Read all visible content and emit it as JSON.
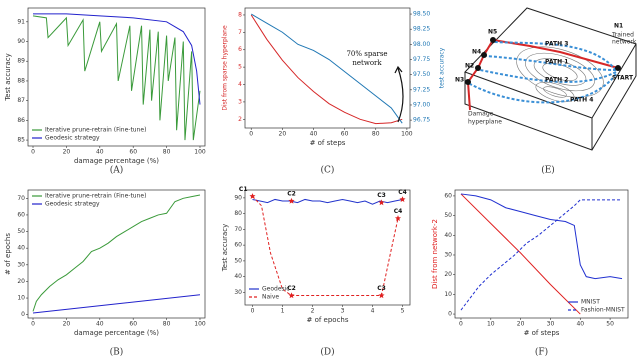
{
  "chart_data": [
    {
      "type": "line",
      "caption": "(A)",
      "xlabel": "damage percentage (%)",
      "ylabel": "Test accuracy",
      "xlim": [
        -3,
        103
      ],
      "xticks": [
        0,
        20,
        40,
        60,
        80,
        100
      ],
      "ylim": [
        84.7,
        91.7
      ],
      "yticks": [
        85,
        86,
        87,
        88,
        89,
        90,
        91
      ],
      "legend": "lower left",
      "series": [
        {
          "name": "Iterative prune-retrain (Fine-tune)",
          "color": "#3a9a3a",
          "x": [
            0,
            8,
            9,
            20,
            21,
            30,
            31,
            40,
            41,
            50,
            51,
            58,
            59,
            65,
            66,
            70,
            71,
            75,
            76,
            80,
            81,
            85,
            86,
            90,
            91,
            95,
            96,
            100
          ],
          "values": [
            91.3,
            91.2,
            90.2,
            91.2,
            89.8,
            91.1,
            88.5,
            91.0,
            89.5,
            90.9,
            88.0,
            90.8,
            87.5,
            90.8,
            86.8,
            90.6,
            87.0,
            90.5,
            86.0,
            90.3,
            88.0,
            90.2,
            85.5,
            90.0,
            85.0,
            89.5,
            85.0,
            87.5
          ]
        },
        {
          "name": "Geodesic strategy",
          "color": "#2222cc",
          "x": [
            0,
            20,
            40,
            60,
            80,
            90,
            95,
            98,
            100
          ],
          "values": [
            91.4,
            91.4,
            91.3,
            91.2,
            91.0,
            90.5,
            89.8,
            88.5,
            86.8
          ]
        }
      ]
    },
    {
      "type": "line",
      "caption": "(C)",
      "xlabel": "# of steps",
      "ylabel": "Dist from sparse hyperplane",
      "y2label": "test accuracy",
      "xlim": [
        -4,
        102
      ],
      "xticks": [
        0,
        20,
        40,
        60,
        80,
        100
      ],
      "ylim": [
        1.5,
        8.4
      ],
      "yticks": [
        2,
        3,
        4,
        5,
        6,
        7,
        8
      ],
      "y2lim": [
        96.62,
        98.6
      ],
      "y2ticks": [
        {
          "value": 96.75,
          "label": "96.75"
        },
        {
          "value": 97,
          "label": "97.00"
        },
        {
          "value": 97.25,
          "label": "97.25"
        },
        {
          "value": 97.5,
          "label": "97.50"
        },
        {
          "value": 97.75,
          "label": "97.75"
        },
        {
          "value": 98,
          "label": "98.00"
        },
        {
          "value": 98.25,
          "label": "98.25"
        },
        {
          "value": 98.5,
          "label": "98.50"
        }
      ],
      "x": [
        0,
        10,
        20,
        30,
        40,
        50,
        60,
        70,
        80,
        90,
        97
      ],
      "annotation": [
        "70% sparse",
        "network"
      ],
      "series": [
        {
          "color": "#d62728",
          "values": [
            8,
            6.6,
            5.4,
            4.4,
            3.6,
            2.9,
            2.4,
            2.0,
            1.75,
            1.8,
            2.0
          ]
        },
        {
          "color": "#1f77b4",
          "axis": "y2",
          "values": [
            98.5,
            98.35,
            98.2,
            98.0,
            97.9,
            97.75,
            97.55,
            97.35,
            97.15,
            96.95,
            96.7
          ]
        }
      ]
    },
    {
      "type": "line",
      "caption": "(B)",
      "xlabel": "damage percentage (%)",
      "ylabel": "# of epochs",
      "xlim": [
        -3,
        103
      ],
      "xticks": [
        0,
        20,
        40,
        60,
        80,
        100
      ],
      "ylim": [
        -2,
        75
      ],
      "yticks": [
        0,
        10,
        20,
        30,
        40,
        50,
        60,
        70
      ],
      "legend": "upper left",
      "series": [
        {
          "name": "Iterative prune-retrain (Fine-tune)",
          "color": "#3a9a3a",
          "x": [
            0,
            2,
            5,
            10,
            15,
            20,
            25,
            30,
            35,
            40,
            45,
            50,
            55,
            60,
            65,
            70,
            75,
            80,
            85,
            90,
            95,
            100
          ],
          "values": [
            2,
            8,
            12,
            17,
            21,
            24,
            28,
            32,
            38,
            40,
            43,
            47,
            50,
            53,
            56,
            58,
            60,
            61,
            68,
            70,
            71,
            72
          ]
        },
        {
          "name": "Geodesic strategy",
          "color": "#2222cc",
          "x": [
            0,
            50,
            100
          ],
          "values": [
            1,
            6.5,
            12
          ]
        }
      ]
    },
    {
      "type": "line",
      "caption": "(D)",
      "xlabel": "# of epochs",
      "ylabel": "Test accuracy",
      "xlim": [
        -0.25,
        5.25
      ],
      "xticks": [
        0,
        1,
        2,
        3,
        4,
        5
      ],
      "ylim": [
        22,
        95
      ],
      "yticks": [
        30,
        40,
        50,
        60,
        70,
        80,
        90
      ],
      "legend": "lower left",
      "series": [
        {
          "name": "Geodesic",
          "color": "#2233cc",
          "x": [
            0,
            0.25,
            0.5,
            0.75,
            1,
            1.25,
            1.5,
            1.75,
            2,
            2.25,
            2.5,
            2.75,
            3,
            3.25,
            3.5,
            3.75,
            4,
            4.25,
            4.5,
            4.75,
            5
          ],
          "values": [
            89,
            88,
            87,
            89,
            88,
            88,
            87,
            89,
            88,
            88,
            87,
            88,
            89,
            88,
            87,
            88,
            86,
            88,
            87,
            88,
            89
          ]
        },
        {
          "name": "Naive",
          "color": "#e02020",
          "dash": true,
          "x": [
            0,
            0.3,
            0.6,
            1,
            1.3,
            2,
            3,
            4,
            4.3,
            4.6,
            4.85
          ],
          "values": [
            91,
            85,
            55,
            32,
            28,
            28,
            28,
            28,
            28,
            55,
            77
          ]
        }
      ],
      "points": [
        {
          "label": "C1",
          "x": 0,
          "y": 91
        },
        {
          "label": "C2",
          "x": 1.3,
          "y": 88
        },
        {
          "label": "C3",
          "x": 4.3,
          "y": 87
        },
        {
          "label": "C4",
          "x": 5,
          "y": 89
        },
        {
          "label": "C2",
          "x": 1.3,
          "y": 28
        },
        {
          "label": "C3",
          "x": 4.3,
          "y": 28
        },
        {
          "label": "C4",
          "x": 4.85,
          "y": 77
        }
      ],
      "point_color": "#e02020"
    },
    {
      "type": "line",
      "caption": "(F)",
      "xlabel": "# of steps",
      "ylabel": "Dist from network-2",
      "xlim": [
        -2,
        56
      ],
      "xticks": [
        0,
        10,
        20,
        30,
        40,
        50
      ],
      "ylim": [
        -2,
        63
      ],
      "yticks": [
        0,
        10,
        20,
        30,
        40,
        50,
        60
      ],
      "legend": "lower right",
      "series": [
        {
          "color": "#e02020",
          "x": [
            0,
            10,
            20,
            30,
            40
          ],
          "values": [
            61,
            46,
            31,
            15,
            0
          ]
        },
        {
          "name": "MNIST",
          "color": "#2030d0",
          "x": [
            0,
            5,
            10,
            15,
            20,
            25,
            30,
            35,
            38,
            40,
            42,
            45,
            50,
            54
          ],
          "values": [
            61,
            60,
            58,
            54,
            52,
            50,
            48,
            47,
            45,
            25,
            19,
            18,
            19,
            18
          ]
        },
        {
          "name": "Fashion-MNIST",
          "color": "#2030d0",
          "dash": true,
          "x": [
            0,
            3,
            6,
            10,
            14,
            18,
            22,
            26,
            30,
            34,
            38,
            40,
            45,
            54
          ],
          "values": [
            2,
            8,
            14,
            20,
            25,
            30,
            36,
            40,
            45,
            50,
            55,
            58,
            58,
            58
          ]
        }
      ]
    }
  ],
  "diagram": {
    "caption": "(E)",
    "n1": "N1",
    "trained": [
      "Trained",
      "network"
    ],
    "start": "START",
    "n5": "N5",
    "n4": "N4",
    "n2": "N2",
    "n3": "N3",
    "path3": "PATH 3",
    "path1": "PATH 1",
    "path2": "PATH 2",
    "path4": "PATH 4",
    "damage": [
      "Damage",
      "hyperplane"
    ]
  }
}
